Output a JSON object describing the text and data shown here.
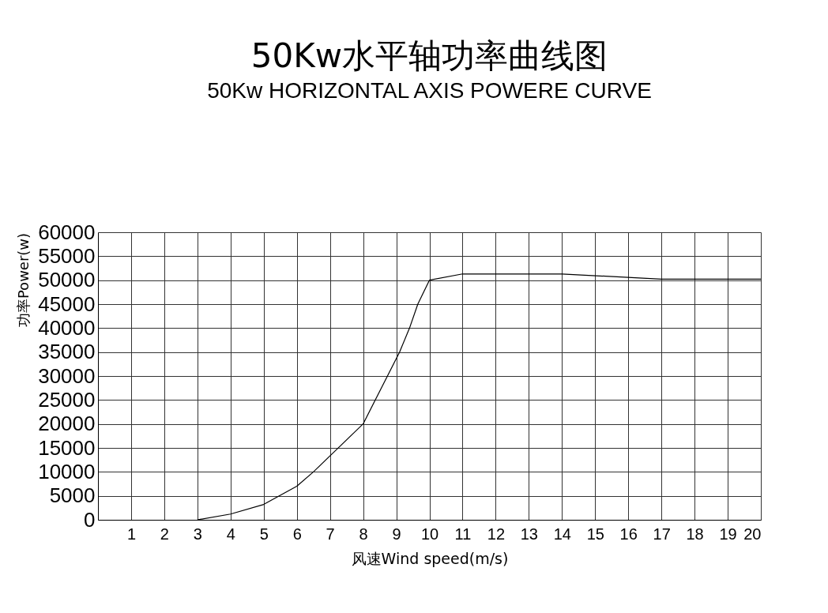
{
  "chart_data": {
    "type": "line",
    "title": "50Kw水平轴功率曲线图",
    "subtitle": "50Kw HORIZONTAL AXIS POWERE CURVE",
    "xlabel": "风速Wind speed(m/s)",
    "ylabel": "功率Power(w)",
    "x": [
      3,
      4,
      5,
      6,
      6.5,
      8,
      9.1,
      9.4,
      9.65,
      10,
      11,
      14,
      17,
      20
    ],
    "series": [
      {
        "color": "#000000",
        "values": [
          0,
          1200,
          3200,
          7000,
          10000,
          20000,
          35000,
          40000,
          45000,
          50000,
          51300,
          51300,
          50200,
          50200
        ]
      }
    ],
    "xlim": [
      0,
      20
    ],
    "ylim": [
      0,
      60000
    ],
    "xticks": [
      1,
      2,
      3,
      4,
      5,
      6,
      7,
      8,
      9,
      10,
      11,
      12,
      13,
      14,
      15,
      16,
      17,
      18,
      19,
      20
    ],
    "yticks": [
      0,
      5000,
      10000,
      15000,
      20000,
      25000,
      30000,
      35000,
      40000,
      45000,
      50000,
      55000,
      60000
    ],
    "grid": true,
    "line_style": "solid"
  }
}
